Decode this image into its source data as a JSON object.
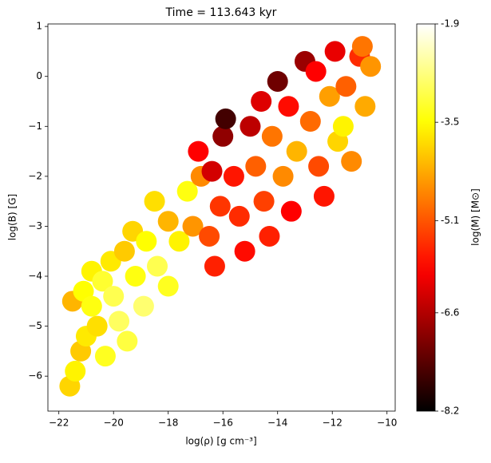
{
  "chart_data": {
    "type": "scatter",
    "title": "Time = 113.643 kyr",
    "x_label": "log(ρ) [g cm⁻³]",
    "y_label": "log(B) [G]",
    "colorbar_label": "log(M) [M⊙]",
    "colormap": "hot",
    "xlim": [
      -22.4,
      -9.7
    ],
    "ylim": [
      -6.7,
      1.05
    ],
    "xticks": [
      {
        "value": -22,
        "label": "−22"
      },
      {
        "value": -20,
        "label": "−20"
      },
      {
        "value": -18,
        "label": "−18"
      },
      {
        "value": -16,
        "label": "−16"
      },
      {
        "value": -14,
        "label": "−14"
      },
      {
        "value": -12,
        "label": "−12"
      },
      {
        "value": -10,
        "label": "−10"
      }
    ],
    "yticks": [
      {
        "value": -6,
        "label": "−6"
      },
      {
        "value": -5,
        "label": "−5"
      },
      {
        "value": -4,
        "label": "−4"
      },
      {
        "value": -3,
        "label": "−3"
      },
      {
        "value": -2,
        "label": "−2"
      },
      {
        "value": -1,
        "label": "−1"
      },
      0,
      1
    ],
    "clim": [
      -8.2,
      -1.9
    ],
    "cticks": [
      -8.2,
      -6.6,
      -5.1,
      -3.5,
      -1.9
    ],
    "x": [
      -21.6,
      -21.4,
      -21.2,
      -21.0,
      -21.5,
      -21.1,
      -20.8,
      -20.6,
      -20.3,
      -20.8,
      -20.4,
      -20.0,
      -19.8,
      -19.5,
      -20.1,
      -19.6,
      -19.2,
      -18.9,
      -19.3,
      -18.8,
      -18.4,
      -18.0,
      -18.5,
      -18.0,
      -17.6,
      -17.3,
      -17.1,
      -16.8,
      -16.5,
      -16.3,
      -16.1,
      -16.9,
      -16.4,
      -16.0,
      -15.9,
      -15.6,
      -15.4,
      -15.2,
      -15.0,
      -14.8,
      -14.5,
      -14.3,
      -14.6,
      -14.2,
      -14.0,
      -13.8,
      -13.5,
      -13.6,
      -13.3,
      -13.0,
      -12.8,
      -12.5,
      -12.3,
      -12.6,
      -12.1,
      -11.8,
      -11.9,
      -11.5,
      -11.3,
      -11.0,
      -10.8,
      -10.9,
      -10.6,
      -11.6
    ],
    "y": [
      -6.2,
      -5.9,
      -5.5,
      -5.2,
      -4.5,
      -4.3,
      -4.6,
      -5.0,
      -5.6,
      -3.9,
      -4.1,
      -4.4,
      -4.9,
      -5.3,
      -3.7,
      -3.5,
      -4.0,
      -4.6,
      -3.1,
      -3.3,
      -3.8,
      -4.2,
      -2.5,
      -2.9,
      -3.3,
      -2.3,
      -3.0,
      -2.0,
      -3.2,
      -3.8,
      -2.6,
      -1.5,
      -1.9,
      -1.2,
      -0.85,
      -2.0,
      -2.8,
      -3.5,
      -1.0,
      -1.8,
      -2.5,
      -3.2,
      -0.5,
      -1.2,
      -0.1,
      -2.0,
      -2.7,
      -0.6,
      -1.5,
      0.3,
      -0.9,
      -1.8,
      -2.4,
      0.1,
      -0.4,
      -1.3,
      0.5,
      -0.2,
      -1.7,
      0.4,
      -0.6,
      0.6,
      0.2,
      -1.0
    ],
    "c": [
      -3.9,
      -3.6,
      -4.0,
      -3.7,
      -4.2,
      -3.5,
      -3.4,
      -3.8,
      -3.3,
      -3.6,
      -3.2,
      -3.0,
      -2.9,
      -3.1,
      -3.7,
      -4.0,
      -3.4,
      -2.8,
      -3.9,
      -3.5,
      -3.0,
      -3.3,
      -3.8,
      -4.2,
      -3.6,
      -3.4,
      -4.5,
      -4.6,
      -5.2,
      -5.6,
      -5.4,
      -5.9,
      -6.3,
      -6.9,
      -7.6,
      -5.7,
      -5.5,
      -5.8,
      -6.5,
      -5.0,
      -5.3,
      -5.6,
      -6.2,
      -4.8,
      -7.2,
      -4.6,
      -5.9,
      -5.8,
      -4.2,
      -6.8,
      -4.9,
      -5.2,
      -5.7,
      -5.9,
      -4.4,
      -3.9,
      -6.1,
      -5.0,
      -4.6,
      -5.5,
      -4.3,
      -4.8,
      -4.5,
      -3.6
    ]
  }
}
